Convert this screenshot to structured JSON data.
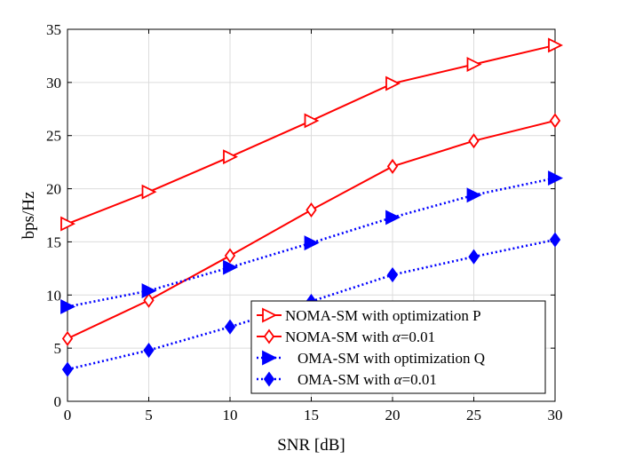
{
  "chart_data": {
    "type": "line",
    "title": "",
    "xlabel": "SNR [dB]",
    "ylabel": "bps/Hz",
    "xlim": [
      0,
      30
    ],
    "ylim": [
      0,
      35
    ],
    "xticks": [
      0,
      5,
      10,
      15,
      20,
      25,
      30
    ],
    "yticks": [
      0,
      5,
      10,
      15,
      20,
      25,
      30,
      35
    ],
    "grid": true,
    "legend_position": "bottom-right",
    "x": [
      0,
      5,
      10,
      15,
      20,
      25,
      30
    ],
    "series": [
      {
        "name": "NOMA-SM with optimization P",
        "legend": {
          "prefix": "NOMA-SM with optimization P",
          "symbol": "",
          "suffix": ""
        },
        "values": [
          16.7,
          19.7,
          23.0,
          26.4,
          29.9,
          31.7,
          33.5
        ],
        "color": "#ff0000",
        "line_style": "solid",
        "marker": "triangle-right-open"
      },
      {
        "name": "NOMA-SM with α=0.01",
        "legend": {
          "prefix": "NOMA-SM with ",
          "symbol": "α",
          "suffix": "=0.01"
        },
        "values": [
          5.9,
          9.5,
          13.7,
          18.0,
          22.1,
          24.5,
          26.4
        ],
        "color": "#ff0000",
        "line_style": "solid",
        "marker": "diamond-open"
      },
      {
        "name": "OMA-SM with optimization Q",
        "legend": {
          "prefix": "OMA-SM with optimization Q",
          "symbol": "",
          "suffix": ""
        },
        "values": [
          8.9,
          10.4,
          12.6,
          14.9,
          17.3,
          19.4,
          21.0
        ],
        "color": "#0000ff",
        "line_style": "dotted",
        "marker": "triangle-right-filled"
      },
      {
        "name": "OMA-SM with α=0.01",
        "legend": {
          "prefix": "OMA-SM with ",
          "symbol": "α",
          "suffix": "=0.01"
        },
        "values": [
          3.0,
          4.8,
          7.0,
          9.4,
          11.9,
          13.6,
          15.2
        ],
        "color": "#0000ff",
        "line_style": "dotted",
        "marker": "diamond-filled"
      }
    ]
  }
}
